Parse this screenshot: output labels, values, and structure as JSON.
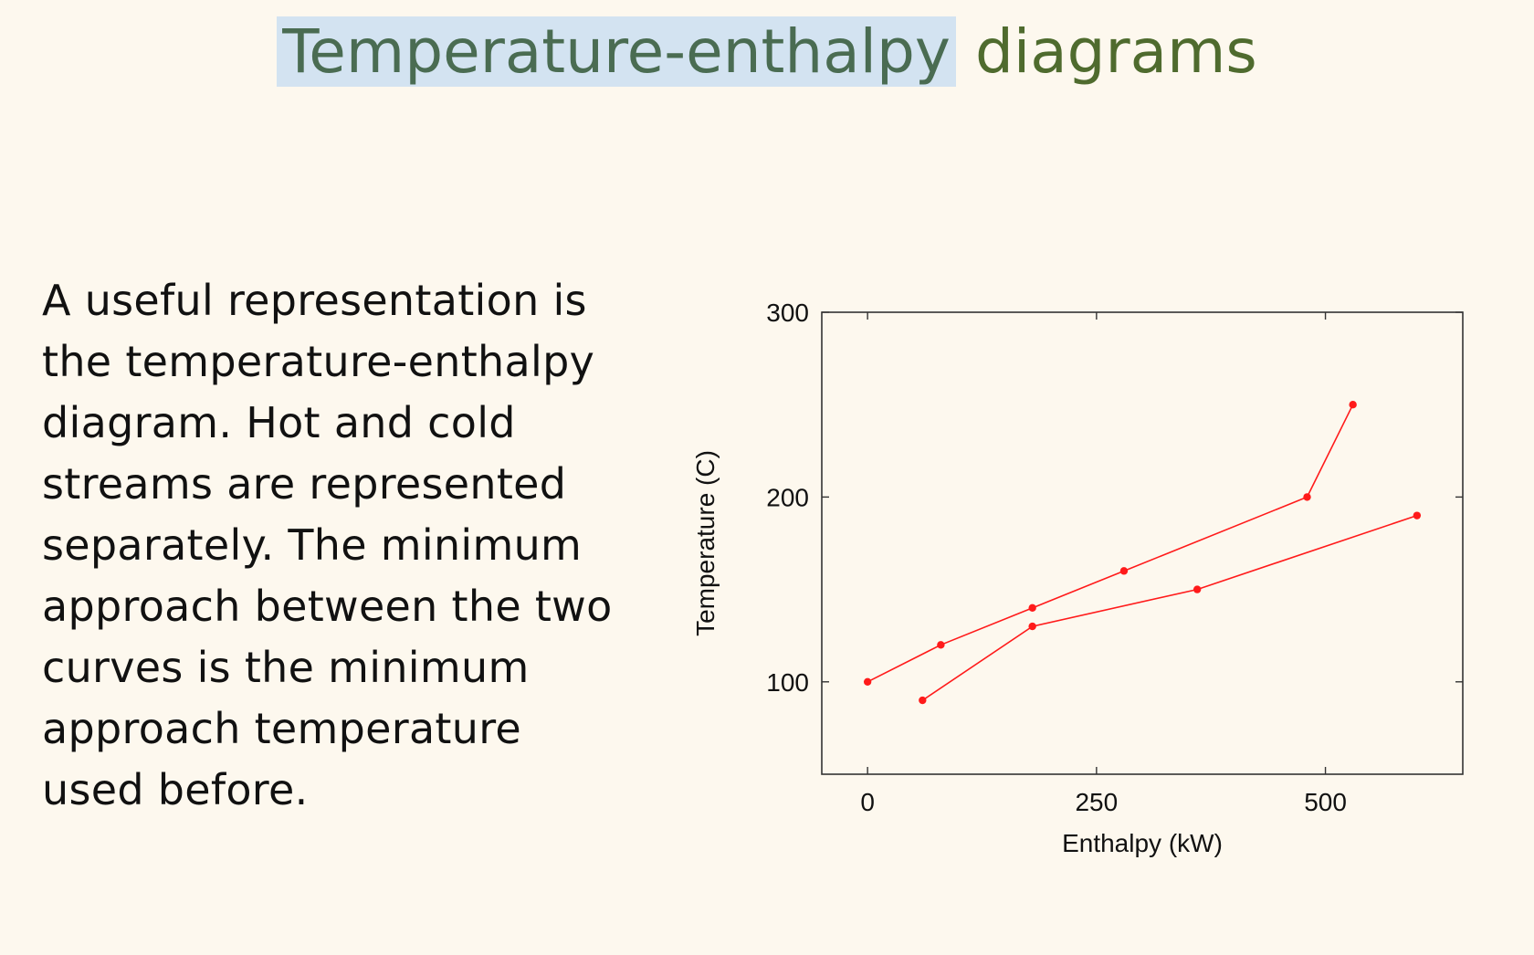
{
  "slide": {
    "title_highlight": "Temperature-enthalpy",
    "title_rest": "diagrams",
    "body_lines": [
      "A useful representation is",
      "the temperature-enthalpy",
      "diagram.  Hot and cold",
      "streams are represented",
      "separately.  The minimum",
      "approach between the two",
      "curves is the minimum",
      "approach temperature",
      "used before."
    ]
  },
  "colors": {
    "background": "#fdf8ee",
    "title": "#4f6b2e",
    "title_highlight_bg": "#d3e3f1",
    "series": "#ff1a1a"
  },
  "chart_data": {
    "type": "line",
    "xlabel": "Enthalpy (kW)",
    "ylabel": "Temperature (C)",
    "xlim": [
      -50,
      650
    ],
    "ylim": [
      50,
      300
    ],
    "xticks": [
      0,
      250,
      500
    ],
    "yticks": [
      100,
      200,
      300
    ],
    "grid": false,
    "legend": "none",
    "series": [
      {
        "points": [
          [
            0,
            100
          ],
          [
            80,
            120
          ],
          [
            180,
            140
          ],
          [
            280,
            160
          ],
          [
            480,
            200
          ],
          [
            530,
            250
          ]
        ]
      },
      {
        "points": [
          [
            60,
            90
          ],
          [
            180,
            130
          ],
          [
            360,
            150
          ],
          [
            600,
            190
          ]
        ]
      }
    ]
  }
}
